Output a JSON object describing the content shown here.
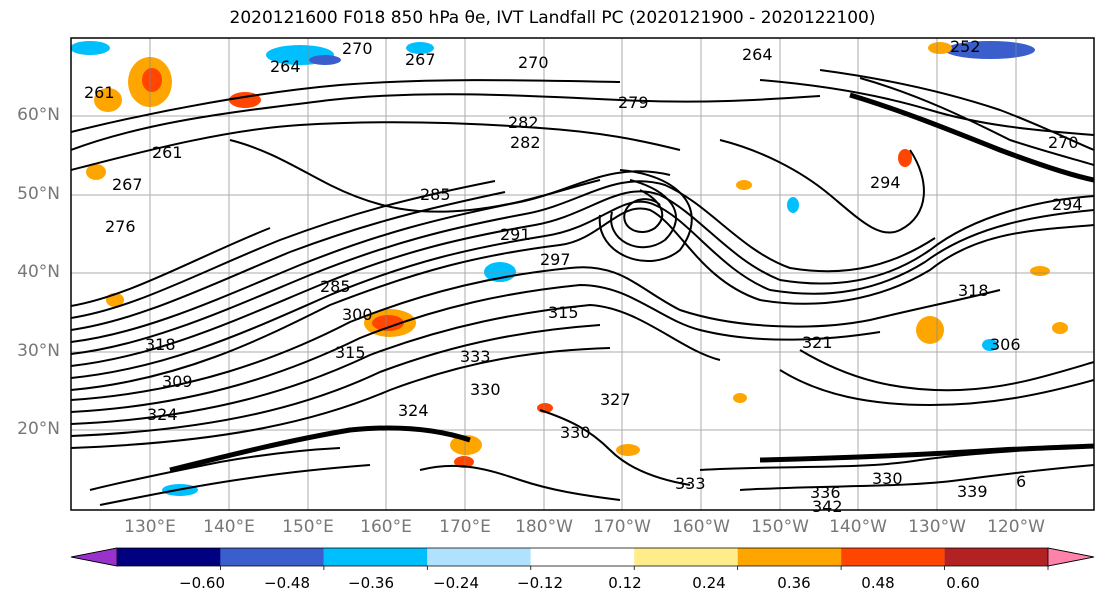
{
  "title": "2020121600 F018 850 hPa θe, IVT Landfall PC (2020121900 - 2020122100)",
  "lat_labels": [
    "60°N",
    "50°N",
    "40°N",
    "30°N",
    "20°N"
  ],
  "lon_labels": [
    "130°E",
    "140°E",
    "150°E",
    "160°E",
    "170°E",
    "180°W",
    "170°W",
    "160°W",
    "150°W",
    "140°W",
    "130°W",
    "120°W"
  ],
  "contour_labels": [
    "270",
    "264",
    "252",
    "261",
    "267",
    "270",
    "279",
    "282",
    "282",
    "264",
    "267",
    "276",
    "261",
    "285",
    "294",
    "270",
    "294",
    "291",
    "297",
    "285",
    "300",
    "315",
    "315",
    "318",
    "309",
    "324",
    "324",
    "333",
    "321",
    "330",
    "318",
    "306",
    "333",
    "336",
    "342",
    "330",
    "339",
    "327",
    "330",
    "6"
  ],
  "colorbar": {
    "ticks": [
      "−0.60",
      "−0.48",
      "−0.36",
      "−0.24",
      "−0.12",
      "0.12",
      "0.24",
      "0.36",
      "0.48",
      "0.60"
    ],
    "colors": [
      "#9932cc",
      "#000080",
      "#3a5fcd",
      "#00bfff",
      "#b0e2ff",
      "#ffffff",
      "#ffec8b",
      "#ffa500",
      "#ff4500",
      "#b22222",
      "#ff82ab"
    ]
  },
  "chart_data": {
    "type": "contour",
    "field": "850 hPa equivalent potential temperature (K) with IVT landfall PC shading",
    "lat_range": [
      "10°N",
      "70°N"
    ],
    "lon_range": [
      "120°E",
      "115°W"
    ],
    "contour_values": [
      252,
      261,
      264,
      267,
      270,
      276,
      279,
      282,
      285,
      291,
      294,
      297,
      300,
      306,
      309,
      315,
      318,
      321,
      324,
      327,
      330,
      333,
      336,
      339,
      342
    ],
    "shading_levels": [
      -0.6,
      -0.48,
      -0.36,
      -0.24,
      -0.12,
      0.12,
      0.24,
      0.36,
      0.48,
      0.6
    ]
  }
}
